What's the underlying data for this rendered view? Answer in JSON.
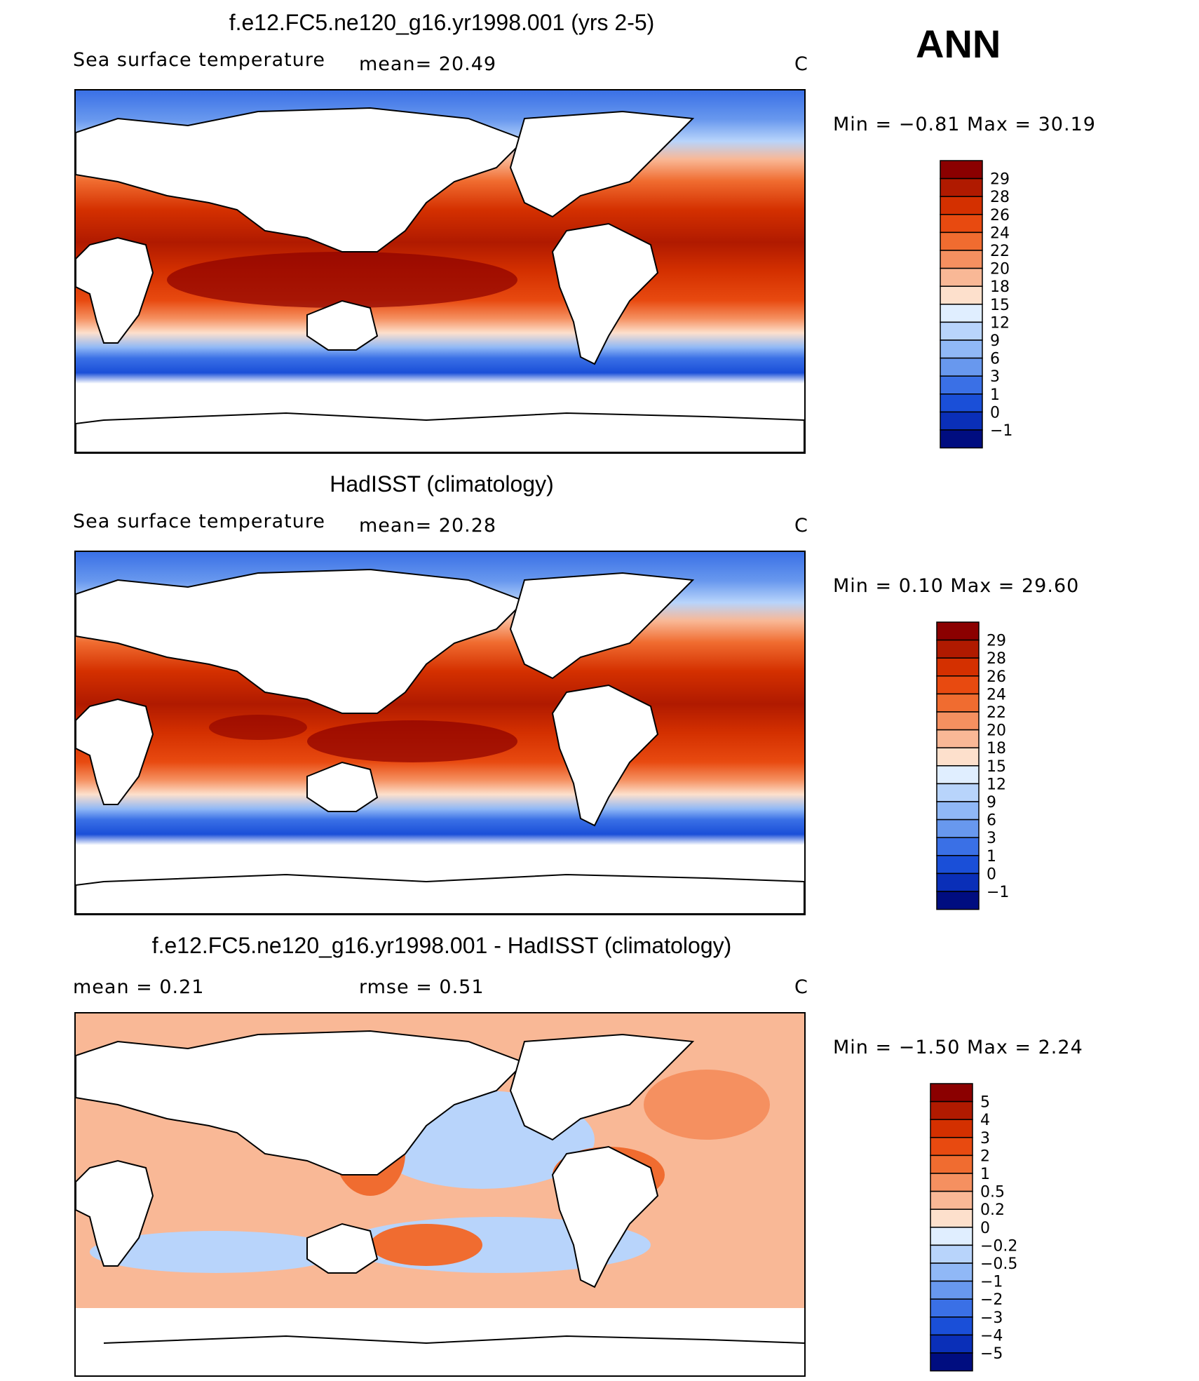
{
  "season": "ANN",
  "panels": [
    {
      "id": "model",
      "title": "f.e12.FC5.ne120_g16.yr1998.001 (yrs 2-5)",
      "left_label": "Sea surface temperature",
      "stat1": "mean=   20.49",
      "stat2": "",
      "units": "C",
      "minmax": "Min =   −0.81  Max =   30.19",
      "colorbar": {
        "labels": [
          "29",
          "28",
          "26",
          "24",
          "22",
          "20",
          "18",
          "15",
          "12",
          "9",
          "6",
          "3",
          "1",
          "0",
          "−1"
        ],
        "colors": [
          "#8b0000",
          "#b01a00",
          "#d43000",
          "#e84a10",
          "#f06c30",
          "#f59060",
          "#f9b896",
          "#fde0cc",
          "#e0eeff",
          "#b8d4fb",
          "#90b8f6",
          "#6898ee",
          "#3a70e6",
          "#1a4fd8",
          "#0a2fb8",
          "#000d80"
        ]
      }
    },
    {
      "id": "obs",
      "title": "HadISST (climatology)",
      "left_label": "Sea surface temperature",
      "stat1": "mean=   20.28",
      "stat2": "",
      "units": "C",
      "minmax": "Min =    0.10  Max =   29.60",
      "colorbar": {
        "labels": [
          "29",
          "28",
          "26",
          "24",
          "22",
          "20",
          "18",
          "15",
          "12",
          "9",
          "6",
          "3",
          "1",
          "0",
          "−1"
        ],
        "colors": [
          "#8b0000",
          "#b01a00",
          "#d43000",
          "#e84a10",
          "#f06c30",
          "#f59060",
          "#f9b896",
          "#fde0cc",
          "#e0eeff",
          "#b8d4fb",
          "#90b8f6",
          "#6898ee",
          "#3a70e6",
          "#1a4fd8",
          "#0a2fb8",
          "#000d80"
        ]
      }
    },
    {
      "id": "diff",
      "title": "f.e12.FC5.ne120_g16.yr1998.001 - HadISST (climatology)",
      "left_label": "mean =    0.21",
      "stat1": "rmse =    0.51",
      "stat2": "",
      "units": "C",
      "minmax": "Min =   −1.50  Max =    2.24",
      "colorbar": {
        "labels": [
          "5",
          "4",
          "3",
          "2",
          "1",
          "0.5",
          "0.2",
          "0",
          "−0.2",
          "−0.5",
          "−1",
          "−2",
          "−3",
          "−4",
          "−5"
        ],
        "colors": [
          "#8b0000",
          "#b01a00",
          "#d43000",
          "#e84a10",
          "#f06c30",
          "#f59060",
          "#f9b896",
          "#fde0cc",
          "#e0eeff",
          "#b8d4fb",
          "#90b8f6",
          "#6898ee",
          "#3a70e6",
          "#1a4fd8",
          "#0a2fb8",
          "#000d80"
        ]
      }
    }
  ]
}
